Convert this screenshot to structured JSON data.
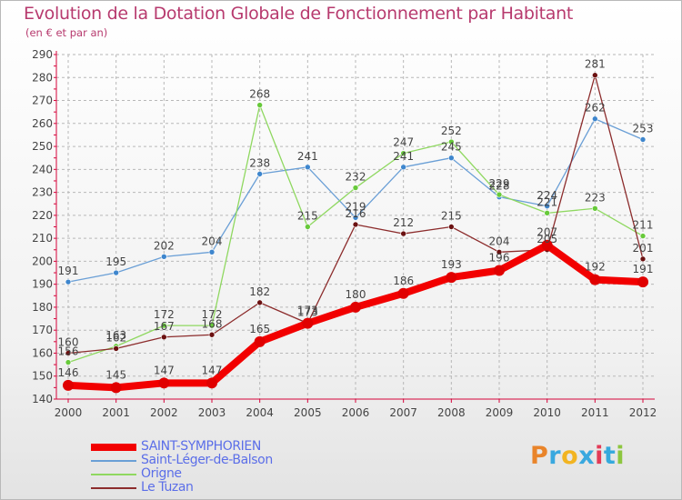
{
  "header": {
    "title": "Evolution de la Dotation Globale de Fonctionnement par Habitant",
    "subtitle": "(en € et par an)"
  },
  "brand": {
    "text": "Proxiti",
    "colors": [
      "#e9842a",
      "#39a8df",
      "#f2b421",
      "#39a8df",
      "#e33b57",
      "#35a9dc",
      "#8dc63f"
    ]
  },
  "colors": {
    "axis": "#d6033a",
    "grid": "#b8b8b8"
  },
  "chart_data": {
    "type": "line",
    "title": "Evolution de la Dotation Globale de Fonctionnement par Habitant",
    "subtitle": "(en € et par an)",
    "x": [
      "2000",
      "2001",
      "2002",
      "2003",
      "2004",
      "2005",
      "2006",
      "2007",
      "2008",
      "2009",
      "2010",
      "2011",
      "2012"
    ],
    "ylim": [
      140,
      290
    ],
    "yticks": [
      140,
      150,
      160,
      170,
      180,
      190,
      200,
      210,
      220,
      230,
      240,
      250,
      260,
      270,
      280,
      290
    ],
    "grid": "horizontal dashed",
    "legend_position": "bottom-left",
    "series": [
      {
        "name": "SAINT-SYMPHORIEN",
        "values": [
          146,
          145,
          147,
          147,
          165,
          173,
          180,
          186,
          193,
          196,
          207,
          192,
          191
        ],
        "labels": [
          "146",
          "145",
          "147",
          "147",
          "165",
          "173",
          "180",
          "186",
          "193",
          "196",
          "207",
          "192",
          "191"
        ],
        "color": "#f20000",
        "marker": "#e00000",
        "emphasis": true
      },
      {
        "name": "Saint-Léger-de-Balson",
        "values": [
          191,
          195,
          202,
          204,
          238,
          241,
          219,
          241,
          245,
          228,
          224,
          262,
          253
        ],
        "labels": [
          "191",
          "195",
          "202",
          "204",
          "238",
          "241",
          "219",
          "241",
          "245",
          "228",
          "224",
          "262",
          "253"
        ],
        "color": "#6a9fd6",
        "marker": "#3e86cd",
        "emphasis": false
      },
      {
        "name": "Origne",
        "values": [
          156,
          163,
          172,
          172,
          268,
          215,
          232,
          247,
          252,
          229,
          221,
          223,
          211
        ],
        "labels": [
          "156",
          "163",
          "172",
          "172",
          "268",
          "215",
          "232",
          "247",
          "252",
          "229",
          "221",
          "223",
          "211"
        ],
        "color": "#8fd860",
        "marker": "#67c93a",
        "emphasis": false
      },
      {
        "name": "Le Tuzan",
        "values": [
          160,
          162,
          167,
          168,
          182,
          173,
          216,
          212,
          215,
          204,
          205,
          281,
          201
        ],
        "labels": [
          "160",
          "162",
          "167",
          "168",
          "182",
          "173",
          "216",
          "212",
          "215",
          "204",
          "205",
          "281",
          "201"
        ],
        "color": "#8c2c2c",
        "marker": "#6b1111",
        "emphasis": false
      }
    ]
  },
  "legend": [
    {
      "label": "SAINT-SYMPHORIEN",
      "color": "#f20000",
      "emphasis": true
    },
    {
      "label": "Saint-Léger-de-Balson",
      "color": "#6a9fd6",
      "emphasis": false
    },
    {
      "label": "Origne",
      "color": "#8fd860",
      "emphasis": false
    },
    {
      "label": "Le Tuzan",
      "color": "#8c2c2c",
      "emphasis": false
    }
  ]
}
